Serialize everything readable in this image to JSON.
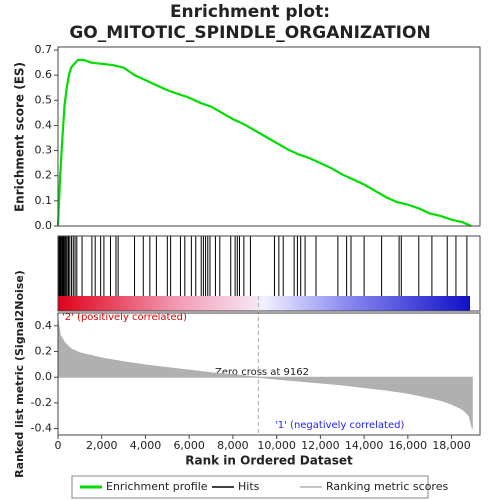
{
  "chart_data": [
    {
      "type": "line",
      "title": "Enrichment plot:",
      "subtitle": "GO_MITOTIC_SPINDLE_ORGANIZATION",
      "y_label": "Enrichment score (ES)",
      "series": [
        {
          "name": "Enrichment profile",
          "color": "#00dd00"
        }
      ],
      "x": [
        0,
        100,
        200,
        300,
        400,
        500,
        600,
        700,
        900,
        1200,
        1500,
        2000,
        2500,
        3000,
        3500,
        4000,
        4500,
        5000,
        5500,
        6000,
        6500,
        7000,
        7500,
        8000,
        8500,
        9000,
        9500,
        10000,
        10500,
        11000,
        11500,
        12000,
        12500,
        13000,
        13500,
        14000,
        14500,
        15000,
        15500,
        16000,
        16500,
        17000,
        17500,
        18000,
        18500,
        18900
      ],
      "values": [
        0,
        0.2,
        0.35,
        0.48,
        0.55,
        0.6,
        0.63,
        0.64,
        0.66,
        0.66,
        0.65,
        0.645,
        0.64,
        0.63,
        0.6,
        0.58,
        0.56,
        0.54,
        0.525,
        0.51,
        0.49,
        0.475,
        0.45,
        0.425,
        0.405,
        0.38,
        0.355,
        0.33,
        0.305,
        0.285,
        0.27,
        0.25,
        0.23,
        0.205,
        0.185,
        0.165,
        0.14,
        0.115,
        0.095,
        0.085,
        0.07,
        0.05,
        0.04,
        0.025,
        0.015,
        0
      ],
      "xlim": [
        0,
        19300
      ],
      "ylim": [
        0,
        0.7
      ],
      "yticks": [
        {
          "value": 0,
          "label": "0.0"
        },
        0.1,
        0.2,
        0.3,
        0.4,
        0.5,
        0.6,
        0.7
      ]
    },
    {
      "type": "hits",
      "series": [
        {
          "name": "Hits",
          "color": "#000000"
        }
      ],
      "x": [
        30,
        60,
        90,
        120,
        150,
        190,
        230,
        270,
        320,
        370,
        420,
        480,
        540,
        620,
        700,
        780,
        860,
        1100,
        1550,
        1700,
        1950,
        2100,
        2400,
        2650,
        2750,
        3500,
        3900,
        4200,
        4500,
        5000,
        5150,
        5600,
        5800,
        6100,
        6300,
        6550,
        6650,
        6750,
        6850,
        6950,
        7200,
        7400,
        7900,
        8100,
        8200,
        8300,
        8500,
        8800,
        9900,
        10100,
        10300,
        10800,
        10950,
        11100,
        11300,
        11800,
        12800,
        13200,
        13400,
        14000,
        14800,
        15600,
        15700,
        16500,
        17100,
        17800,
        18200,
        18700
      ],
      "xlim": [
        0,
        19300
      ]
    },
    {
      "type": "area",
      "y_label": "Ranked list metric (Signal2Noise)",
      "x_label": "Rank in Ordered Dataset",
      "series": [
        {
          "name": "Ranking metric scores",
          "color": "#b0b0b0"
        }
      ],
      "x": [
        0,
        100,
        300,
        600,
        1000,
        2000,
        3000,
        4000,
        5000,
        6000,
        7000,
        8000,
        9162,
        10000,
        11000,
        12000,
        13000,
        14000,
        15000,
        16000,
        17000,
        17500,
        18000,
        18500,
        18800,
        18950
      ],
      "values": [
        0.45,
        0.33,
        0.27,
        0.22,
        0.19,
        0.15,
        0.12,
        0.095,
        0.075,
        0.055,
        0.035,
        0.02,
        0,
        -0.015,
        -0.03,
        -0.045,
        -0.06,
        -0.08,
        -0.1,
        -0.125,
        -0.16,
        -0.18,
        -0.21,
        -0.25,
        -0.3,
        -0.4
      ],
      "zero_cross": 9162,
      "zero_cross_label": "Zero cross at 9162",
      "positive_label": "'2' (positively correlated)",
      "negative_label": "'1' (negatively correlated)",
      "xlim": [
        0,
        19300
      ],
      "ylim": [
        -0.45,
        0.5
      ],
      "yticks": [
        -0.4,
        -0.2,
        {
          "value": 0,
          "label": "0.0"
        },
        0.2,
        0.4
      ],
      "xticks": [
        0,
        {
          "value": 2000,
          "label": "2,000"
        },
        {
          "value": 4000,
          "label": "4,000"
        },
        {
          "value": 6000,
          "label": "6,000"
        },
        {
          "value": 8000,
          "label": "8,000"
        },
        {
          "value": 10000,
          "label": "10,000"
        },
        {
          "value": 12000,
          "label": "12,000"
        },
        {
          "value": 14000,
          "label": "14,000"
        },
        {
          "value": 16000,
          "label": "16,000"
        },
        {
          "value": 18000,
          "label": "18,000"
        }
      ]
    }
  ]
}
